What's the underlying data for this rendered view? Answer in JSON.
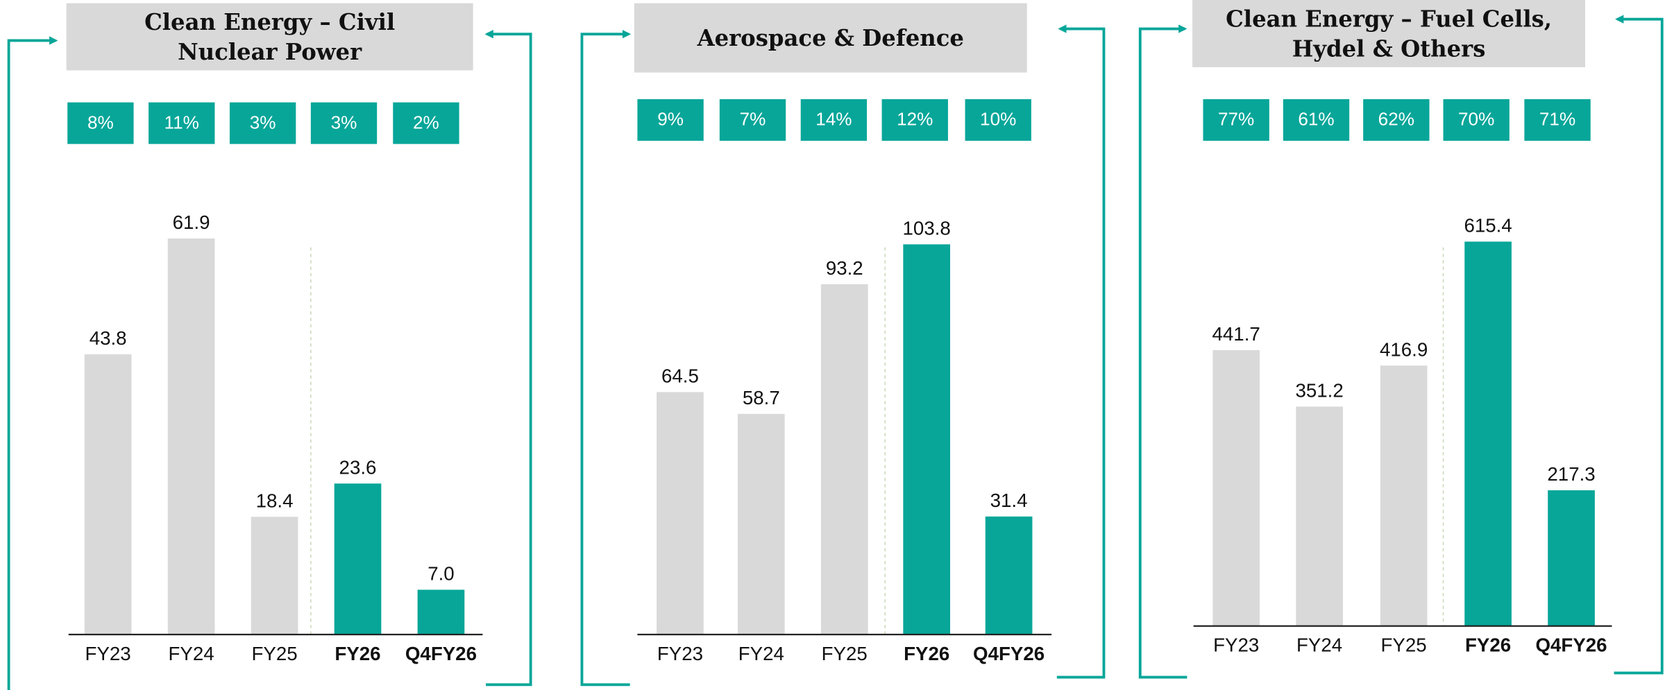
{
  "chart_data": [
    {
      "type": "bar",
      "title": "Clean Energy – Civil Nuclear Power",
      "annotations": [
        "8%",
        "11%",
        "3%",
        "3%",
        "2%"
      ],
      "categories": [
        "FY23",
        "FY24",
        "FY25",
        "FY26",
        "Q4FY26"
      ],
      "values": [
        43.8,
        61.9,
        18.4,
        23.6,
        7.0
      ],
      "value_labels": [
        "43.8",
        "61.9",
        "18.4",
        "23.6",
        "7.0"
      ],
      "colors": [
        "#d9d9d9",
        "#d9d9d9",
        "#d9d9d9",
        "#07a699",
        "#07a699"
      ],
      "ylim": [
        0,
        70
      ]
    },
    {
      "type": "bar",
      "title": "Aerospace & Defence",
      "annotations": [
        "9%",
        "7%",
        "14%",
        "12%",
        "10%"
      ],
      "categories": [
        "FY23",
        "FY24",
        "FY25",
        "FY26",
        "Q4FY26"
      ],
      "values": [
        64.5,
        58.7,
        93.2,
        103.8,
        31.4
      ],
      "colors": [
        "#d9d9d9",
        "#d9d9d9",
        "#d9d9d9",
        "#07a699",
        "#07a699"
      ],
      "ylim": [
        0,
        120
      ]
    },
    {
      "type": "bar",
      "title": "Clean Energy – Fuel Cells, Hydel & Others",
      "annotations": [
        "77%",
        "61%",
        "62%",
        "70%",
        "71%"
      ],
      "categories": [
        "FY23",
        "FY24",
        "FY25",
        "FY26",
        "Q4FY26"
      ],
      "values": [
        441.7,
        351.2,
        416.9,
        615.4,
        217.3
      ],
      "colors": [
        "#d9d9d9",
        "#d9d9d9",
        "#d9d9d9",
        "#07a699",
        "#07a699"
      ],
      "ylim": [
        0,
        700
      ]
    }
  ]
}
